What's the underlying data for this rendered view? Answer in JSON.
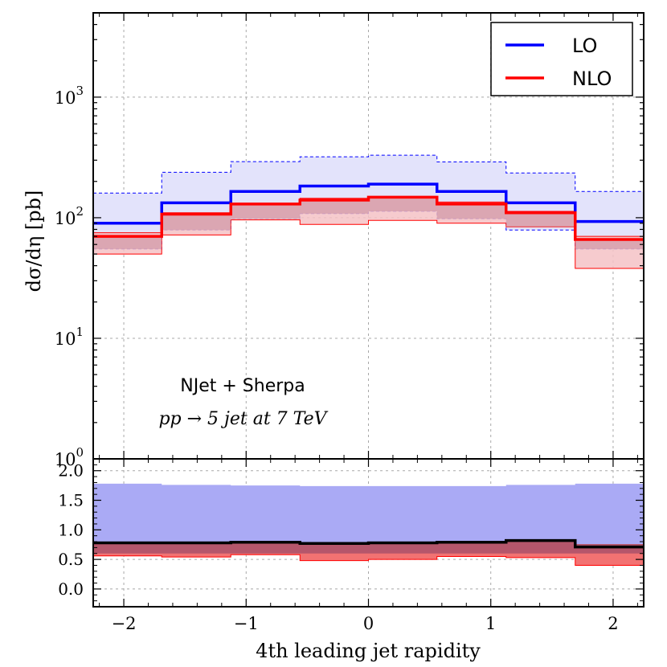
{
  "chart_data": [
    {
      "type": "line",
      "panel": "main",
      "ylabel": "dσ/dη [pb]",
      "yscale": "log",
      "ylim": [
        1,
        5000
      ],
      "xlim": [
        -2.25,
        2.25
      ],
      "bin_edges": [
        -2.25,
        -1.69,
        -1.125,
        -0.56,
        0.0,
        0.56,
        1.125,
        1.69,
        2.25
      ],
      "ytick_base": "10",
      "ytick_exponents": [
        "0",
        "1",
        "2",
        "3"
      ],
      "ytick_values": [
        1,
        10,
        100,
        1000
      ],
      "series": [
        {
          "name": "LO",
          "color": "#0000ff",
          "band_color": "#e3e3fb",
          "values": [
            90,
            133,
            165,
            183,
            190,
            165,
            133,
            93
          ],
          "band_low": [
            55,
            79,
            98,
            108,
            113,
            98,
            79,
            55
          ],
          "band_high": [
            160,
            238,
            292,
            320,
            330,
            290,
            235,
            165
          ]
        },
        {
          "name": "NLO",
          "color": "#ff0000",
          "band_color": "#f5c2c6",
          "values": [
            70,
            107,
            130,
            140,
            148,
            130,
            110,
            66
          ],
          "band_low": [
            50,
            72,
            96,
            88,
            95,
            90,
            84,
            38
          ],
          "band_high": [
            75,
            110,
            132,
            145,
            150,
            135,
            113,
            70
          ]
        }
      ],
      "annotation_line1": "NJet + Sherpa",
      "annotation_line2": "pp → 5 jet at 7 TeV",
      "legend_position": "top-right",
      "grid": true
    },
    {
      "type": "line",
      "panel": "ratio",
      "xlabel": "4th leading jet rapidity",
      "ylim": [
        -0.3,
        2.2
      ],
      "xticks": [
        -2,
        -1,
        0,
        1,
        2
      ],
      "xtick_labels": [
        "−2",
        "−1",
        "0",
        "1",
        "2"
      ],
      "yticks": [
        0.0,
        0.5,
        1.0,
        1.5,
        2.0
      ],
      "ytick_labels": [
        "0.0",
        "0.5",
        "1.0",
        "1.5",
        "2.0"
      ],
      "series": [
        {
          "name": "LO band",
          "color": "#aaaaf5",
          "band_low": [
            0.6,
            0.6,
            0.6,
            0.6,
            0.6,
            0.6,
            0.6,
            0.6
          ],
          "band_high": [
            1.78,
            1.76,
            1.75,
            1.74,
            1.74,
            1.74,
            1.76,
            1.78
          ]
        },
        {
          "name": "NLO band",
          "color": "#f27272",
          "band_low": [
            0.56,
            0.54,
            0.58,
            0.48,
            0.5,
            0.55,
            0.53,
            0.4
          ],
          "band_high": [
            0.8,
            0.8,
            0.8,
            0.79,
            0.79,
            0.8,
            0.83,
            0.76
          ]
        },
        {
          "name": "NLO/LO",
          "color": "#000000",
          "values": [
            0.78,
            0.78,
            0.79,
            0.77,
            0.78,
            0.79,
            0.82,
            0.71
          ]
        }
      ],
      "grid": true
    }
  ]
}
